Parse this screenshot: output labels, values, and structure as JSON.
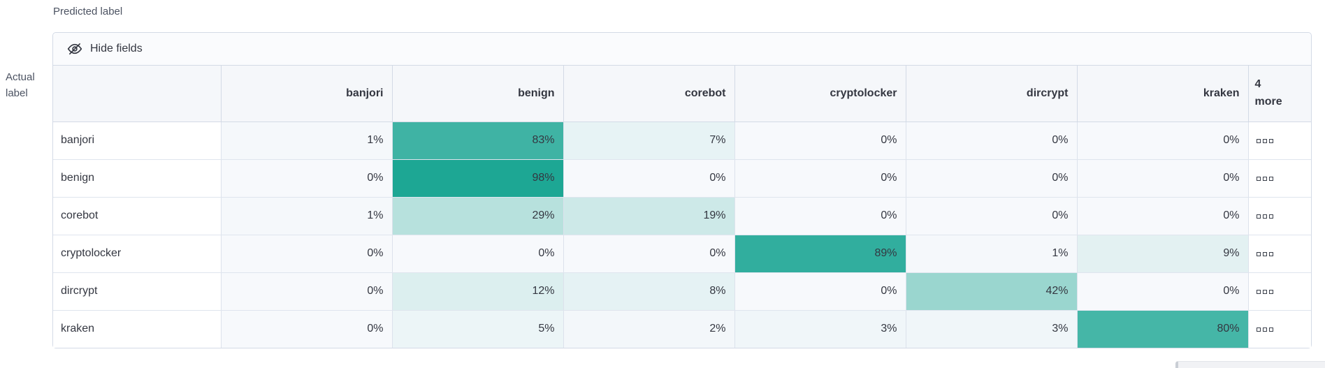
{
  "axes": {
    "predicted_label": "Predicted label",
    "actual_label": "Actual label"
  },
  "toolbar": {
    "hide_fields_label": "Hide fields",
    "icon": "eye-closed-icon"
  },
  "grid": {
    "more_column_label": "4 more",
    "more_cell_icon": "boxes-horizontal-icon",
    "value_suffix": "%"
  },
  "colors": {
    "cell_teal": "#19A592",
    "cell_base": "#F7F9FC",
    "header_bg": "#F5F7FA",
    "toolbar_bg": "#FAFBFD",
    "border": "#D3DAE6",
    "text": "#343741",
    "subdued_text": "#4C5362"
  },
  "chart_data": {
    "type": "heatmap",
    "xlabel": "Predicted label",
    "ylabel": "Actual label",
    "x_categories": [
      "banjori",
      "benign",
      "corebot",
      "cryptolocker",
      "dircrypt",
      "kraken"
    ],
    "y_categories": [
      "banjori",
      "benign",
      "corebot",
      "cryptolocker",
      "dircrypt",
      "kraken"
    ],
    "values_percent": [
      [
        1,
        83,
        7,
        0,
        0,
        0
      ],
      [
        0,
        98,
        0,
        0,
        0,
        0
      ],
      [
        1,
        29,
        19,
        0,
        0,
        0
      ],
      [
        0,
        0,
        0,
        89,
        1,
        9
      ],
      [
        0,
        12,
        8,
        0,
        42,
        0
      ],
      [
        0,
        5,
        2,
        3,
        3,
        80
      ]
    ],
    "hidden_columns_count": 4
  }
}
